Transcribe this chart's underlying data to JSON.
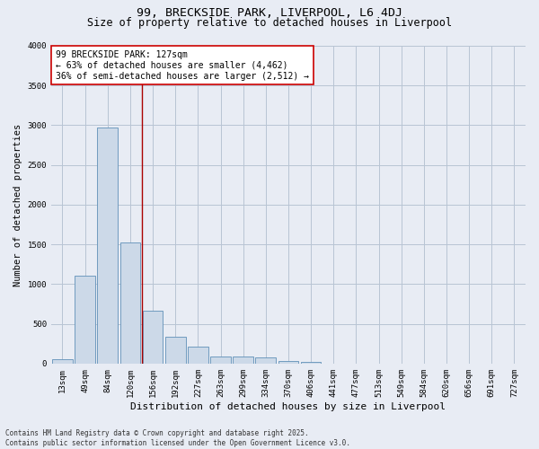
{
  "title": "99, BRECKSIDE PARK, LIVERPOOL, L6 4DJ",
  "subtitle": "Size of property relative to detached houses in Liverpool",
  "xlabel": "Distribution of detached houses by size in Liverpool",
  "ylabel": "Number of detached properties",
  "categories": [
    "13sqm",
    "49sqm",
    "84sqm",
    "120sqm",
    "156sqm",
    "192sqm",
    "227sqm",
    "263sqm",
    "299sqm",
    "334sqm",
    "370sqm",
    "406sqm",
    "441sqm",
    "477sqm",
    "513sqm",
    "549sqm",
    "584sqm",
    "620sqm",
    "656sqm",
    "691sqm",
    "727sqm"
  ],
  "values": [
    50,
    1110,
    2970,
    1520,
    660,
    340,
    215,
    90,
    90,
    80,
    35,
    20,
    0,
    0,
    0,
    0,
    0,
    0,
    0,
    0,
    0
  ],
  "bar_color": "#ccd9e8",
  "bar_edge_color": "#6090b8",
  "bar_linewidth": 0.6,
  "grid_color": "#b8c4d4",
  "background_color": "#e8ecf4",
  "vline_x_idx": 3,
  "vline_color": "#aa0000",
  "annotation_text": "99 BRECKSIDE PARK: 127sqm\n← 63% of detached houses are smaller (4,462)\n36% of semi-detached houses are larger (2,512) →",
  "annotation_box_color": "#ffffff",
  "annotation_box_edge": "#cc0000",
  "ylim": [
    0,
    4000
  ],
  "yticks": [
    0,
    500,
    1000,
    1500,
    2000,
    2500,
    3000,
    3500,
    4000
  ],
  "footnote": "Contains HM Land Registry data © Crown copyright and database right 2025.\nContains public sector information licensed under the Open Government Licence v3.0.",
  "title_fontsize": 9.5,
  "subtitle_fontsize": 8.5,
  "xlabel_fontsize": 8,
  "ylabel_fontsize": 7.5,
  "tick_fontsize": 6.5,
  "annotation_fontsize": 7,
  "footnote_fontsize": 5.5
}
